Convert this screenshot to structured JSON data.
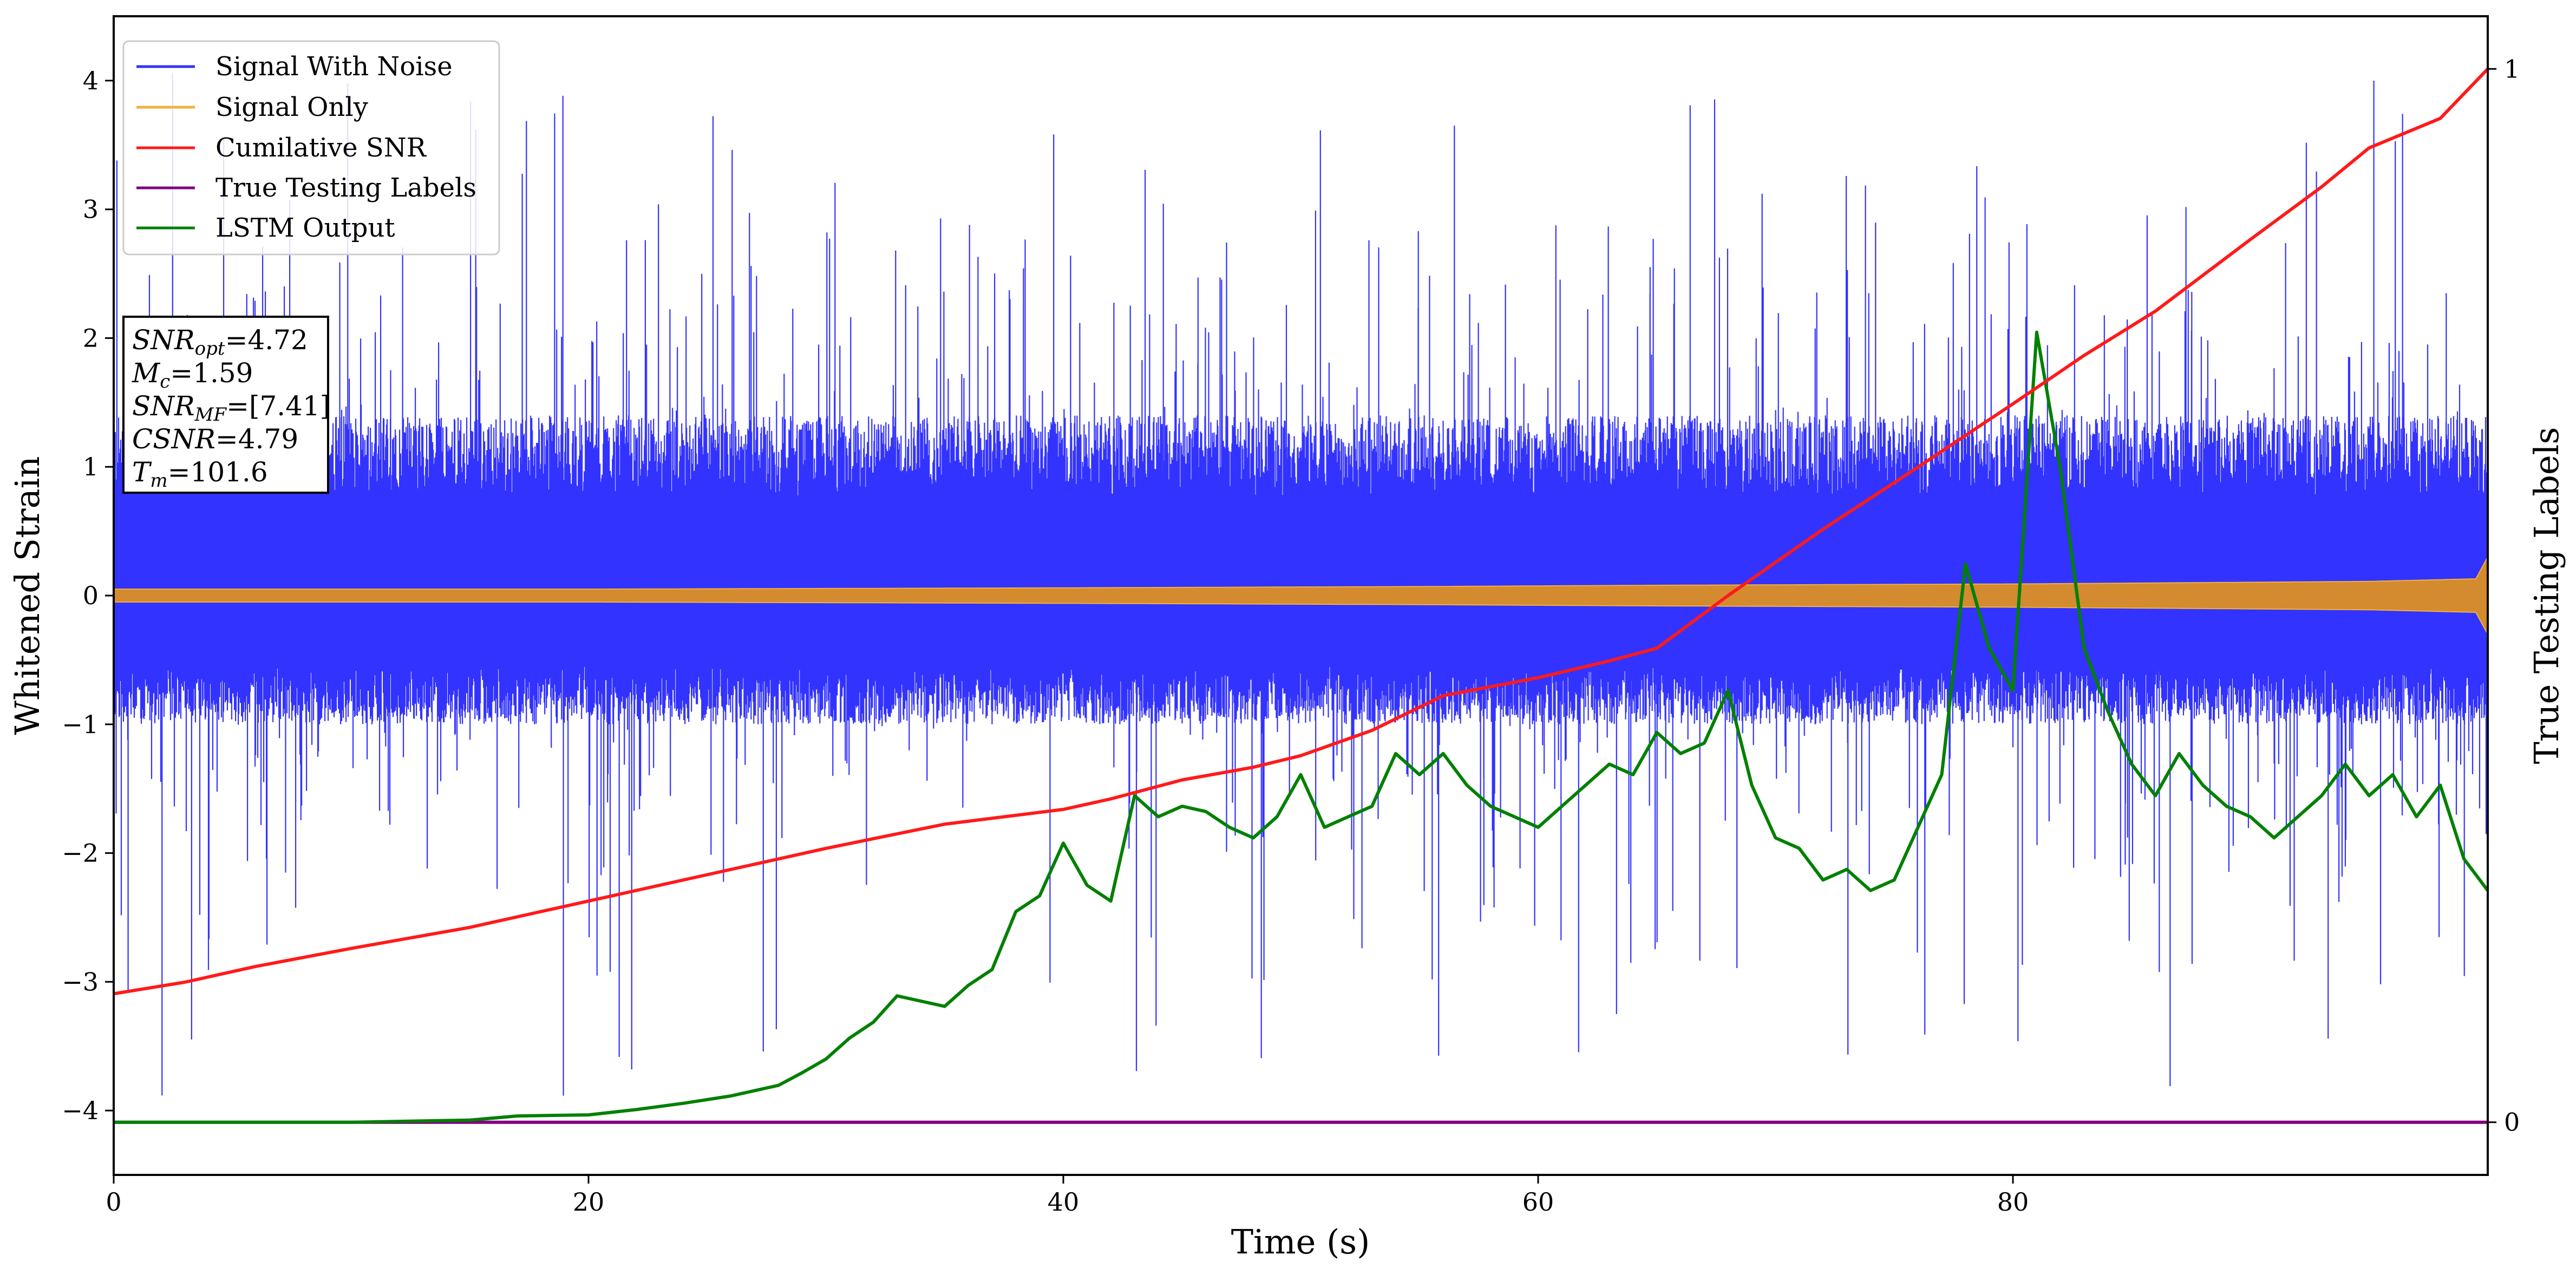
{
  "chart_data": {
    "type": "line",
    "xlabel": "Time (s)",
    "ylabel": "Whitened Strain",
    "y2label": "True Testing Labels",
    "xlim": [
      0,
      100
    ],
    "ylim": [
      -4.5,
      4.5
    ],
    "y2lim": [
      -0.05,
      1.05
    ],
    "xticks": [
      0,
      20,
      40,
      60,
      80
    ],
    "yticks": [
      -4,
      -3,
      -2,
      -1,
      0,
      1,
      2,
      3,
      4
    ],
    "y2ticks": [
      0,
      1
    ],
    "grid": false,
    "legend_position": "top-left",
    "series": [
      {
        "name": "Signal With Noise",
        "color": "#3333ff",
        "axis": "left",
        "noise_band": {
          "typical_low": -1.0,
          "typical_high": 1.4,
          "peak_low": -3.95,
          "peak_high": 4.1
        }
      },
      {
        "name": "Signal Only",
        "color": "#f2b13d",
        "axis": "left",
        "envelope": {
          "x": [
            0,
            20,
            40,
            55,
            65,
            80,
            95,
            99.5,
            100
          ],
          "amplitude": [
            0.05,
            0.05,
            0.06,
            0.07,
            0.08,
            0.09,
            0.11,
            0.13,
            0.3
          ]
        }
      },
      {
        "name": "Cumilative SNR",
        "color": "#ff1a1a",
        "axis": "right",
        "x": [
          0,
          3,
          6,
          10,
          15,
          20,
          25,
          30,
          35,
          40,
          42,
          45,
          48,
          50,
          53,
          56,
          60,
          63,
          65,
          68,
          72,
          76,
          80,
          83,
          86,
          90,
          93,
          95,
          98,
          100
        ],
        "y": [
          0.122,
          0.133,
          0.148,
          0.165,
          0.185,
          0.21,
          0.235,
          0.26,
          0.283,
          0.297,
          0.307,
          0.325,
          0.337,
          0.348,
          0.372,
          0.405,
          0.422,
          0.438,
          0.45,
          0.5,
          0.563,
          0.622,
          0.682,
          0.728,
          0.77,
          0.838,
          0.888,
          0.925,
          0.953,
          1.0
        ]
      },
      {
        "name": "True Testing Labels",
        "color": "#800080",
        "axis": "right",
        "x": [
          0,
          100
        ],
        "y": [
          0,
          0
        ]
      },
      {
        "name": "LSTM Output",
        "color": "#008000",
        "axis": "right",
        "x": [
          0,
          10,
          15,
          17,
          20,
          22,
          24,
          26,
          28,
          29,
          30,
          31,
          32,
          33,
          34,
          35,
          36,
          37,
          38,
          39,
          40,
          41,
          42,
          43,
          44,
          45,
          46,
          47,
          48,
          49,
          50,
          51,
          52,
          53,
          54,
          55,
          56,
          57,
          58,
          59,
          60,
          61,
          62,
          63,
          64,
          65,
          66,
          67,
          68,
          69,
          70,
          71,
          72,
          73,
          74,
          75,
          76,
          77,
          78,
          79,
          80,
          81,
          82,
          83,
          84,
          85,
          86,
          87,
          88,
          89,
          90,
          91,
          92,
          93,
          94,
          95,
          96,
          97,
          98,
          99,
          100
        ],
        "y": [
          0.0,
          0.0,
          0.002,
          0.006,
          0.007,
          0.012,
          0.018,
          0.025,
          0.035,
          0.047,
          0.06,
          0.08,
          0.095,
          0.12,
          0.115,
          0.11,
          0.13,
          0.145,
          0.2,
          0.215,
          0.265,
          0.225,
          0.21,
          0.31,
          0.29,
          0.3,
          0.295,
          0.28,
          0.27,
          0.29,
          0.33,
          0.28,
          0.29,
          0.3,
          0.35,
          0.33,
          0.35,
          0.32,
          0.3,
          0.29,
          0.28,
          0.3,
          0.32,
          0.34,
          0.33,
          0.37,
          0.35,
          0.36,
          0.41,
          0.32,
          0.27,
          0.26,
          0.23,
          0.24,
          0.22,
          0.23,
          0.28,
          0.33,
          0.53,
          0.45,
          0.41,
          0.75,
          0.62,
          0.45,
          0.39,
          0.34,
          0.31,
          0.35,
          0.32,
          0.3,
          0.29,
          0.27,
          0.29,
          0.31,
          0.34,
          0.31,
          0.33,
          0.29,
          0.32,
          0.25,
          0.22
        ]
      }
    ]
  },
  "legend": [
    {
      "label": "Signal With Noise",
      "color": "#3333ff"
    },
    {
      "label": "Signal Only",
      "color": "#f2b13d"
    },
    {
      "label": "Cumilative SNR",
      "color": "#ff1a1a"
    },
    {
      "label": "True Testing Labels",
      "color": "#800080"
    },
    {
      "label": "LSTM Output",
      "color": "#008000"
    }
  ],
  "info_box": [
    {
      "name": "SNR",
      "sub": "opt",
      "value": "=4.72"
    },
    {
      "name": "M",
      "sub": "c",
      "value": "=1.59"
    },
    {
      "name": "SNR",
      "sub": "MF",
      "value": "=[7.41]"
    },
    {
      "name": "CSNR",
      "sub": "",
      "value": "=4.79"
    },
    {
      "name": "T",
      "sub": "m",
      "value": "=101.6"
    }
  ]
}
